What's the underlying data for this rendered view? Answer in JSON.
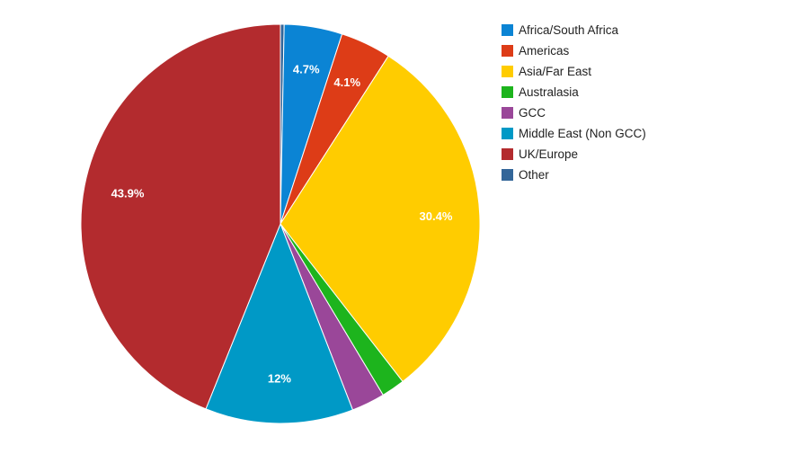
{
  "chart_data": {
    "type": "pie",
    "title": "",
    "legend_position": "right",
    "start": "top, clockwise",
    "slices": [
      {
        "name": "Other",
        "value": 0.3,
        "color": "#336699",
        "label": ""
      },
      {
        "name": "Africa/South Africa",
        "value": 4.7,
        "color": "#0B84D4",
        "label": "4.7%"
      },
      {
        "name": "Americas",
        "value": 4.1,
        "color": "#DD3C17",
        "label": "4.1%"
      },
      {
        "name": "Asia/Far East",
        "value": 30.4,
        "color": "#FFCC00",
        "label": "30.4%"
      },
      {
        "name": "Australasia",
        "value": 1.9,
        "color": "#1DB41D",
        "label": ""
      },
      {
        "name": "GCC",
        "value": 2.7,
        "color": "#9A4799",
        "label": ""
      },
      {
        "name": "Middle East (Non GCC)",
        "value": 12,
        "color": "#0099C6",
        "label": "12%"
      },
      {
        "name": "UK/Europe",
        "value": 43.9,
        "color": "#B32B2E",
        "label": "43.9%"
      }
    ],
    "legend": [
      {
        "name": "Africa/South Africa",
        "color": "#0B84D4"
      },
      {
        "name": "Americas",
        "color": "#DD3C17"
      },
      {
        "name": "Asia/Far East",
        "color": "#FFCC00"
      },
      {
        "name": "Australasia",
        "color": "#1DB41D"
      },
      {
        "name": "GCC",
        "color": "#9A4799"
      },
      {
        "name": "Middle East (Non GCC)",
        "color": "#0099C6"
      },
      {
        "name": "UK/Europe",
        "color": "#B32B2E"
      },
      {
        "name": "Other",
        "color": "#336699"
      }
    ]
  }
}
